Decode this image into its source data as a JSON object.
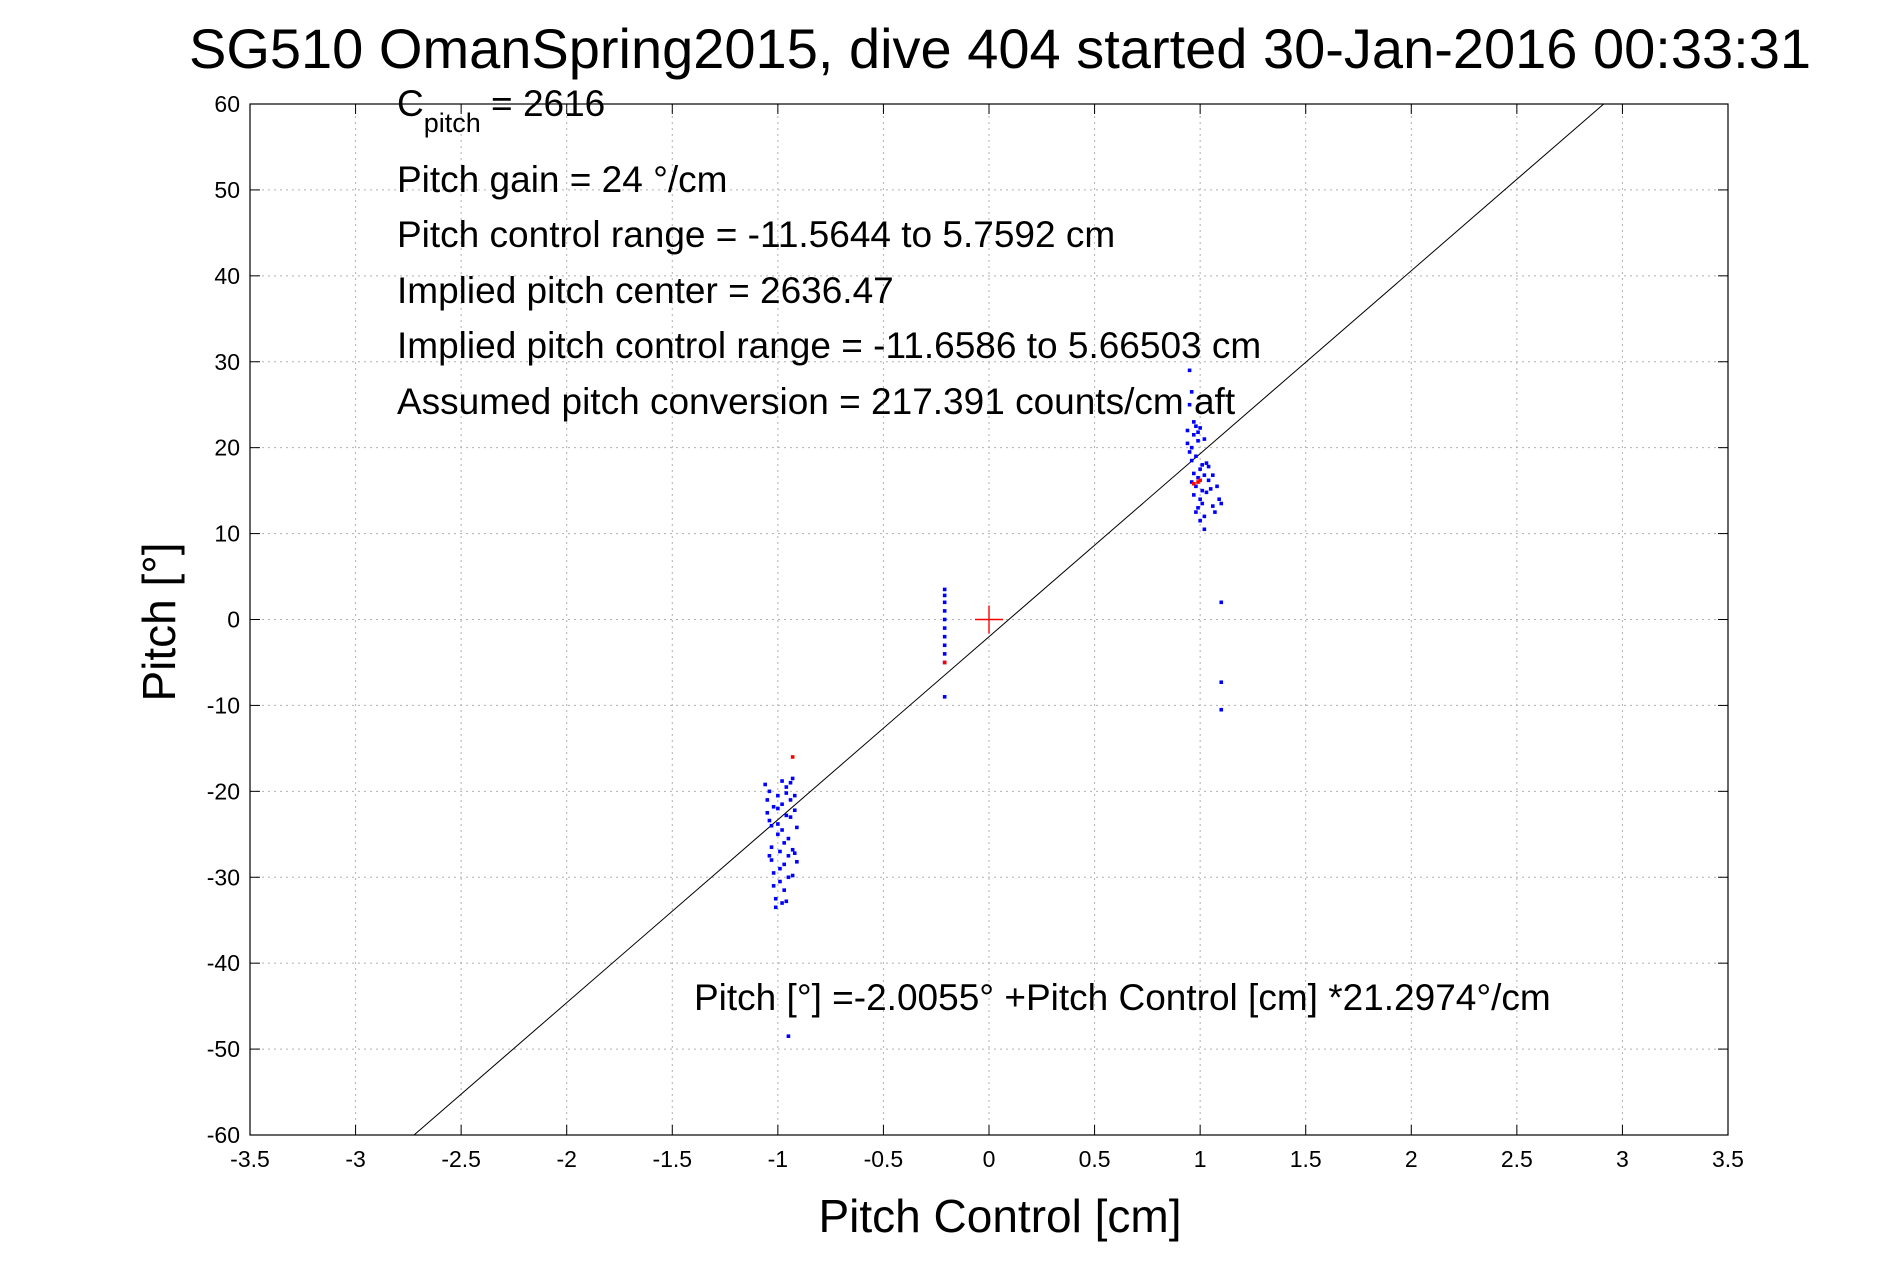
{
  "chart_data": {
    "type": "scatter",
    "title": "SG510 OmanSpring2015, dive 404 started 30-Jan-2016 00:33:31",
    "xlabel": "Pitch Control [cm]",
    "ylabel": "Pitch [°]",
    "xlim": [
      -3.5,
      3.5
    ],
    "ylim": [
      -60,
      60
    ],
    "xticks": [
      -3.5,
      -3,
      -2.5,
      -2,
      -1.5,
      -1,
      -0.5,
      0,
      0.5,
      1,
      1.5,
      2,
      2.5,
      3,
      3.5
    ],
    "yticks": [
      -60,
      -50,
      -40,
      -30,
      -20,
      -10,
      0,
      10,
      20,
      30,
      40,
      50,
      60
    ],
    "xtick_labels": [
      "-3.5",
      "-3",
      "-2.5",
      "-2",
      "-1.5",
      "-1",
      "-0.5",
      "0",
      "0.5",
      "1",
      "1.5",
      "2",
      "2.5",
      "3",
      "3.5"
    ],
    "ytick_labels": [
      "-60",
      "-50",
      "-40",
      "-30",
      "-20",
      "-10",
      "0",
      "10",
      "20",
      "30",
      "40",
      "50",
      "60"
    ],
    "grid": true,
    "colors": {
      "series_main": "#0000ff",
      "series_flagged": "#ff0000",
      "fit_line": "#000000",
      "grid": "#b0b0b0"
    },
    "annotations": {
      "c_pitch_main": "C",
      "c_pitch_sub": "pitch",
      "c_pitch_value": " = 2616",
      "pitch_gain": "Pitch gain = 24 °/cm",
      "pitch_control_range": "Pitch control range = -11.5644 to 5.7592 cm",
      "implied_center": "Implied pitch center = 2636.47",
      "implied_range": "Implied pitch control range = -11.6586 to 5.66503 cm",
      "assumed_conversion": "Assumed pitch conversion = 217.391 counts/cm aft",
      "fit_equation": "Pitch [°] =-2.0055° +Pitch Control [cm] *21.2974°/cm"
    },
    "fit_line": {
      "intercept": -2.0055,
      "slope": 21.2974
    },
    "center_marker": {
      "x": 0,
      "y": 0
    },
    "series": [
      {
        "points": [
          [
            -1.06,
            -19.2
          ],
          [
            -1.05,
            -21.0
          ],
          [
            -1.05,
            -22.5
          ],
          [
            -1.04,
            -20.0
          ],
          [
            -1.04,
            -23.4
          ],
          [
            -1.03,
            -24.0
          ],
          [
            -1.03,
            -26.5
          ],
          [
            -1.03,
            -28.0
          ],
          [
            -1.02,
            -29.5
          ],
          [
            -1.02,
            -31.0
          ],
          [
            -1.01,
            -32.5
          ],
          [
            -1.01,
            -33.5
          ],
          [
            -1.0,
            -20.5
          ],
          [
            -1.0,
            -22.0
          ],
          [
            -1.0,
            -25.0
          ],
          [
            -0.99,
            -27.0
          ],
          [
            -0.99,
            -29.0
          ],
          [
            -0.99,
            -30.5
          ],
          [
            -0.98,
            -18.8
          ],
          [
            -0.98,
            -21.5
          ],
          [
            -0.98,
            -24.5
          ],
          [
            -0.97,
            -26.0
          ],
          [
            -0.97,
            -28.5
          ],
          [
            -0.97,
            -31.5
          ],
          [
            -0.96,
            -32.8
          ],
          [
            -0.96,
            -19.5
          ],
          [
            -0.96,
            -22.8
          ],
          [
            -0.95,
            -25.5
          ],
          [
            -0.95,
            -27.5
          ],
          [
            -0.95,
            -30.0
          ],
          [
            -0.94,
            -19.0
          ],
          [
            -0.94,
            -21.0
          ],
          [
            -0.94,
            -23.0
          ],
          [
            -0.93,
            -26.8
          ],
          [
            -0.93,
            -29.8
          ],
          [
            -0.93,
            -18.5
          ],
          [
            -0.92,
            -20.5
          ],
          [
            -0.92,
            -22.2
          ],
          [
            -0.92,
            -27.2
          ],
          [
            -0.91,
            -24.2
          ],
          [
            -0.91,
            -28.2
          ],
          [
            -1.04,
            -27.5
          ],
          [
            -1.02,
            -21.8
          ],
          [
            -1.0,
            -23.8
          ],
          [
            -0.98,
            -33.0
          ],
          [
            -0.96,
            -20.2
          ],
          [
            -0.21,
            -5.0
          ],
          [
            -0.21,
            -4.0
          ],
          [
            -0.21,
            -3.0
          ],
          [
            -0.21,
            -2.0
          ],
          [
            -0.21,
            -1.0
          ],
          [
            -0.21,
            0.0
          ],
          [
            -0.21,
            1.0
          ],
          [
            -0.21,
            2.0
          ],
          [
            -0.21,
            2.8
          ],
          [
            -0.21,
            3.5
          ],
          [
            -0.21,
            -9.0
          ],
          [
            0.94,
            20.5
          ],
          [
            0.94,
            22.0
          ],
          [
            0.95,
            19.5
          ],
          [
            0.95,
            25.0
          ],
          [
            0.95,
            29.0
          ],
          [
            0.96,
            16.0
          ],
          [
            0.96,
            18.5
          ],
          [
            0.96,
            20.0
          ],
          [
            0.96,
            26.5
          ],
          [
            0.97,
            14.5
          ],
          [
            0.97,
            17.0
          ],
          [
            0.97,
            21.5
          ],
          [
            0.97,
            23.0
          ],
          [
            0.98,
            12.5
          ],
          [
            0.98,
            15.5
          ],
          [
            0.98,
            19.0
          ],
          [
            0.98,
            22.5
          ],
          [
            0.99,
            13.0
          ],
          [
            0.99,
            16.5
          ],
          [
            0.99,
            20.8
          ],
          [
            0.99,
            21.8
          ],
          [
            1.0,
            11.5
          ],
          [
            1.0,
            14.0
          ],
          [
            1.0,
            17.5
          ],
          [
            1.0,
            22.3
          ],
          [
            1.01,
            13.5
          ],
          [
            1.01,
            15.0
          ],
          [
            1.01,
            18.0
          ],
          [
            1.02,
            10.5
          ],
          [
            1.02,
            12.0
          ],
          [
            1.02,
            16.8
          ],
          [
            1.02,
            21.0
          ],
          [
            1.03,
            14.8
          ],
          [
            1.03,
            18.2
          ],
          [
            1.04,
            17.8
          ],
          [
            1.04,
            16.2
          ],
          [
            1.05,
            15.2
          ],
          [
            1.06,
            13.2
          ],
          [
            1.06,
            16.8
          ],
          [
            1.07,
            12.5
          ],
          [
            1.08,
            15.5
          ],
          [
            1.09,
            14.0
          ],
          [
            1.1,
            13.5
          ],
          [
            1.1,
            2.0
          ],
          [
            1.1,
            -7.3
          ],
          [
            1.1,
            -10.5
          ],
          [
            -0.95,
            -48.5
          ]
        ]
      },
      {
        "points": [
          [
            -0.93,
            -16.0
          ],
          [
            -0.21,
            -5.0
          ],
          [
            0.97,
            15.8
          ],
          [
            0.99,
            16.0
          ],
          [
            1.0,
            16.2
          ]
        ]
      }
    ]
  }
}
